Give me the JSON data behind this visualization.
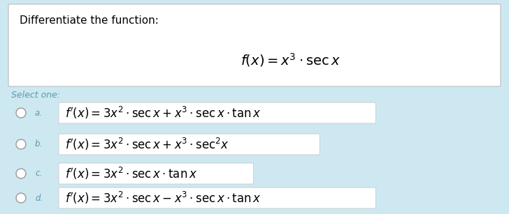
{
  "background_color": "#cde8f0",
  "white_box_color": "#ffffff",
  "title_text": "Differentiate the function:",
  "function_text": "$f(x) = x^3 \\cdot \\mathrm{sec}\\, x$",
  "select_one_text": "Select one:",
  "select_one_color": "#5b9ab5",
  "options": [
    {
      "label": "a.",
      "formula": "$f'(x) = 3x^2 \\cdot \\mathrm{sec}\\, x + x^3 \\cdot \\mathrm{sec}\\, x \\cdot \\tan x$",
      "box_width": 0.62
    },
    {
      "label": "b.",
      "formula": "$f'(x) = 3x^2 \\cdot \\mathrm{sec}\\, x + x^3 \\cdot \\mathrm{sec}^2 x$",
      "box_width": 0.51
    },
    {
      "label": "c.",
      "formula": "$f'(x) = 3x^2 \\cdot \\mathrm{sec}\\, x \\cdot \\tan x$",
      "box_width": 0.38
    },
    {
      "label": "d.",
      "formula": "$f'(x) = 3x^2 \\cdot \\mathrm{sec}\\, x - x^3 \\cdot \\mathrm{sec}\\, x \\cdot \\tan x$",
      "box_width": 0.62
    }
  ],
  "title_fontsize": 11,
  "formula_fontsize": 14,
  "option_fontsize": 12,
  "label_color": "#5b9ab5",
  "option_box_edge": "#c8c8c8"
}
